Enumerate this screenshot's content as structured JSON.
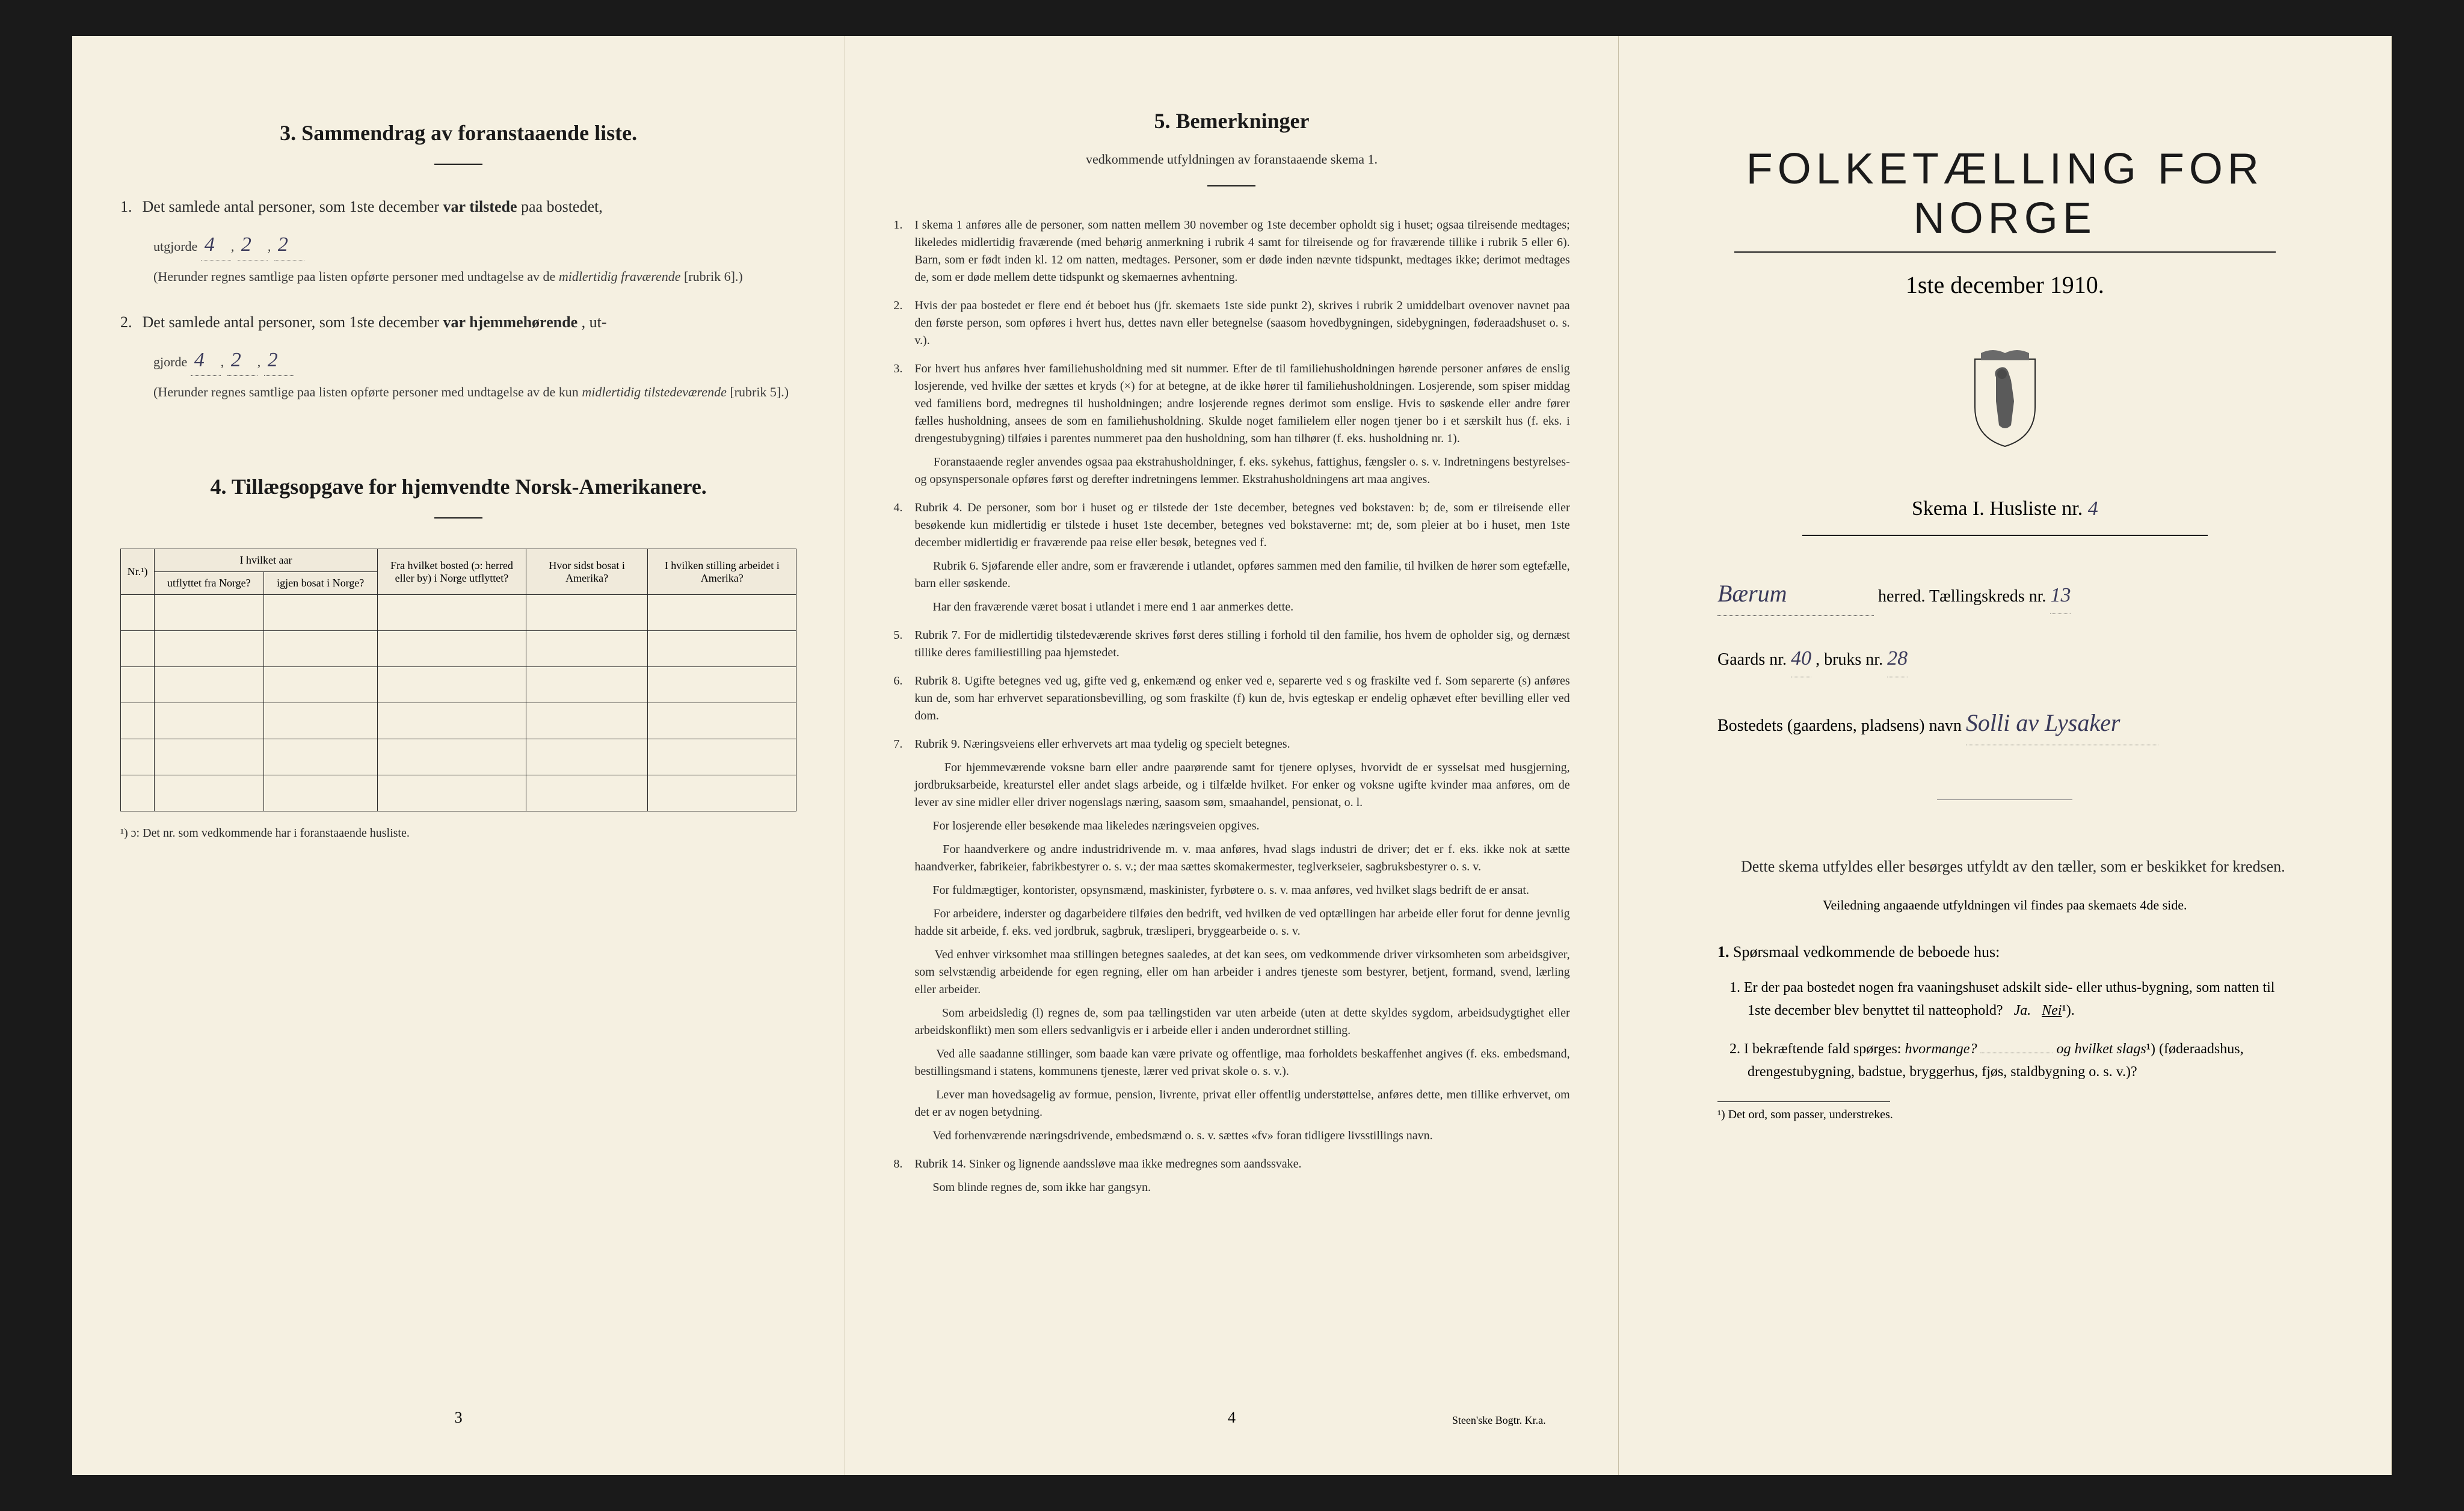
{
  "page1": {
    "section3_heading": "3.   Sammendrag av foranstaaende liste.",
    "item1_prefix": "1.",
    "item1_text": "Det samlede antal personer, som 1ste december",
    "item1_bold": "var tilstede",
    "item1_suffix": "paa bostedet,",
    "utgjorde": "utgjorde",
    "val1_a": "4",
    "val1_b": "2",
    "val1_c": "2",
    "item1_note": "(Herunder regnes samtlige paa listen opførte personer med undtagelse av de",
    "item1_note_em": "midlertidig fraværende",
    "item1_note_suffix": "[rubrik 6].)",
    "item2_prefix": "2.",
    "item2_text": "Det samlede antal personer, som 1ste december",
    "item2_bold": "var hjemmehørende",
    "item2_suffix": ", ut-",
    "utgjorde2": "gjorde",
    "val2_a": "4",
    "val2_b": "2",
    "val2_c": "2",
    "item2_note": "(Herunder regnes samtlige paa listen opførte personer med undtagelse av de kun",
    "item2_note_em": "midlertidig tilstedeværende",
    "item2_note_suffix": "[rubrik 5].)",
    "section4_heading": "4.  Tillægsopgave for hjemvendte Norsk-Amerikanere.",
    "table": {
      "h1": "Nr.¹)",
      "h2_top": "I hvilket aar",
      "h2a": "utflyttet fra Norge?",
      "h2b": "igjen bosat i Norge?",
      "h3": "Fra hvilket bosted (ɔ: herred eller by) i Norge utflyttet?",
      "h4": "Hvor sidst bosat i Amerika?",
      "h5": "I hvilken stilling arbeidet i Amerika?"
    },
    "footnote": "¹) ɔ: Det nr. som vedkommende har i foranstaaende husliste.",
    "page_num": "3"
  },
  "page2": {
    "heading": "5.   Bemerkninger",
    "subheading": "vedkommende utfyldningen av foranstaaende skema 1.",
    "items": [
      {
        "n": "1.",
        "text": "I skema 1 anføres alle de personer, som natten mellem 30 november og 1ste december opholdt sig i huset; ogsaa tilreisende medtages; likeledes midlertidig fraværende (med behørig anmerkning i rubrik 4 samt for tilreisende og for fraværende tillike i rubrik 5 eller 6). Barn, som er født inden kl. 12 om natten, medtages. Personer, som er døde inden nævnte tidspunkt, medtages ikke; derimot medtages de, som er døde mellem dette tidspunkt og skemaernes avhentning."
      },
      {
        "n": "2.",
        "text": "Hvis der paa bostedet er flere end ét beboet hus (jfr. skemaets 1ste side punkt 2), skrives i rubrik 2 umiddelbart ovenover navnet paa den første person, som opføres i hvert hus, dettes navn eller betegnelse (saasom hovedbygningen, sidebygningen, føderaadshuset o. s. v.)."
      },
      {
        "n": "3.",
        "text": "For hvert hus anføres hver familiehusholdning med sit nummer. Efter de til familiehusholdningen hørende personer anføres de enslig losjerende, ved hvilke der sættes et kryds (×) for at betegne, at de ikke hører til familiehusholdningen. Losjerende, som spiser middag ved familiens bord, medregnes til husholdningen; andre losjerende regnes derimot som enslige. Hvis to søskende eller andre fører fælles husholdning, ansees de som en familiehusholdning. Skulde noget familielem eller nogen tjener bo i et særskilt hus (f. eks. i drengestubygning) tilføies i parentes nummeret paa den husholdning, som han tilhører (f. eks. husholdning nr. 1).",
        "p2": "Foranstaaende regler anvendes ogsaa paa ekstrahusholdninger, f. eks. sykehus, fattighus, fængsler o. s. v. Indretningens bestyrelses- og opsynspersonale opføres først og derefter indretningens lemmer. Ekstrahusholdningens art maa angives."
      },
      {
        "n": "4.",
        "text": "Rubrik 4. De personer, som bor i huset og er tilstede der 1ste december, betegnes ved bokstaven: b; de, som er tilreisende eller besøkende kun midlertidig er tilstede i huset 1ste december, betegnes ved bokstaverne: mt; de, som pleier at bo i huset, men 1ste december midlertidig er fraværende paa reise eller besøk, betegnes ved f.",
        "p2": "Rubrik 6. Sjøfarende eller andre, som er fraværende i utlandet, opføres sammen med den familie, til hvilken de hører som egtefælle, barn eller søskende.",
        "p3": "Har den fraværende været bosat i utlandet i mere end 1 aar anmerkes dette."
      },
      {
        "n": "5.",
        "text": "Rubrik 7. For de midlertidig tilstedeværende skrives først deres stilling i forhold til den familie, hos hvem de opholder sig, og dernæst tillike deres familiestilling paa hjemstedet."
      },
      {
        "n": "6.",
        "text": "Rubrik 8. Ugifte betegnes ved ug, gifte ved g, enkemænd og enker ved e, separerte ved s og fraskilte ved f. Som separerte (s) anføres kun de, som har erhvervet separationsbevilling, og som fraskilte (f) kun de, hvis egteskap er endelig ophævet efter bevilling eller ved dom."
      },
      {
        "n": "7.",
        "text": "Rubrik 9. Næringsveiens eller erhvervets art maa tydelig og specielt betegnes.",
        "p2": "For hjemmeværende voksne barn eller andre paarørende samt for tjenere oplyses, hvorvidt de er sysselsat med husgjerning, jordbruksarbeide, kreaturstel eller andet slags arbeide, og i tilfælde hvilket. For enker og voksne ugifte kvinder maa anføres, om de lever av sine midler eller driver nogenslags næring, saasom søm, smaahandel, pensionat, o. l.",
        "p3": "For losjerende eller besøkende maa likeledes næringsveien opgives.",
        "p4": "For haandverkere og andre industridrivende m. v. maa anføres, hvad slags industri de driver; det er f. eks. ikke nok at sætte haandverker, fabrikeier, fabrikbestyrer o. s. v.; der maa sættes skomakermester, teglverkseier, sagbruksbestyrer o. s. v.",
        "p5": "For fuldmægtiger, kontorister, opsynsmænd, maskinister, fyrbøtere o. s. v. maa anføres, ved hvilket slags bedrift de er ansat.",
        "p6": "For arbeidere, inderster og dagarbeidere tilføies den bedrift, ved hvilken de ved optællingen har arbeide eller forut for denne jevnlig hadde sit arbeide, f. eks. ved jordbruk, sagbruk, træsliperi, bryggearbeide o. s. v.",
        "p7": "Ved enhver virksomhet maa stillingen betegnes saaledes, at det kan sees, om vedkommende driver virksomheten som arbeidsgiver, som selvstændig arbeidende for egen regning, eller om han arbeider i andres tjeneste som bestyrer, betjent, formand, svend, lærling eller arbeider.",
        "p8": "Som arbeidsledig (l) regnes de, som paa tællingstiden var uten arbeide (uten at dette skyldes sygdom, arbeidsudygtighet eller arbeidskonflikt) men som ellers sedvanligvis er i arbeide eller i anden underordnet stilling.",
        "p9": "Ved alle saadanne stillinger, som baade kan være private og offentlige, maa forholdets beskaffenhet angives (f. eks. embedsmand, bestillingsmand i statens, kommunens tjeneste, lærer ved privat skole o. s. v.).",
        "p10": "Lever man hovedsagelig av formue, pension, livrente, privat eller offentlig understøttelse, anføres dette, men tillike erhvervet, om det er av nogen betydning.",
        "p11": "Ved forhenværende næringsdrivende, embedsmænd o. s. v. sættes «fv» foran tidligere livsstillings navn."
      },
      {
        "n": "8.",
        "text": "Rubrik 14. Sinker og lignende aandssløve maa ikke medregnes som aandssvake.",
        "p2": "Som blinde regnes de, som ikke har gangsyn."
      }
    ],
    "page_num": "4",
    "printer": "Steen'ske Bogtr.  Kr.a."
  },
  "page3": {
    "title": "FOLKETÆLLING FOR NORGE",
    "date": "1ste december 1910.",
    "schema_label": "Skema I.   Husliste nr.",
    "husliste_nr": "4",
    "herred_val": "Bærum",
    "herred_suffix": "herred.   Tællingskreds nr.",
    "kreds_nr": "13",
    "gaards_label": "Gaards nr.",
    "gaards_nr": "40",
    "bruks_label": ", bruks nr.",
    "bruks_nr": "28",
    "bosted_label": "Bostedets (gaardens, pladsens) navn",
    "bosted_val": "Solli av Lysaker",
    "body1": "Dette skema utfyldes eller besørges utfyldt av den tæller, som er beskikket for kredsen.",
    "body2": "Veiledning angaaende utfyldningen vil findes paa skemaets 4de side.",
    "q_heading_num": "1.",
    "q_heading": "Spørsmaal vedkommende de beboede hus:",
    "q1_num": "1.",
    "q1": "Er der paa bostedet nogen fra vaaningshuset adskilt side- eller uthus-bygning, som natten til 1ste december blev benyttet til natteophold?",
    "q1_ja": "Ja.",
    "q1_nei": "Nei",
    "q1_sup": "¹).",
    "q2_num": "2.",
    "q2_a": "I bekræftende fald spørges:",
    "q2_b": "hvormange?",
    "q2_c": "og hvilket slags",
    "q2_sup": "¹)",
    "q2_d": "(føderaadshus, drengestubygning, badstue, bryggerhus, fjøs, staldbygning o. s. v.)?",
    "footnote": "¹) Det ord, som passer, understrekes."
  },
  "colors": {
    "paper": "#f5f0e1",
    "ink": "#1a1a1a",
    "bg": "#1a1a1a",
    "handwriting": "#3a3a5a"
  }
}
